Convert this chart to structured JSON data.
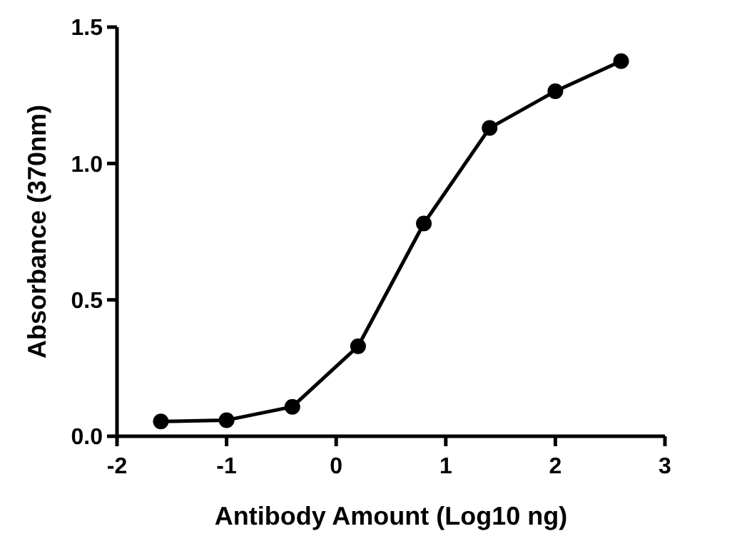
{
  "chart_data": {
    "type": "line",
    "xlabel": "Antibody Amount (Log10 ng)",
    "ylabel": "Absorbance (370nm)",
    "x": [
      -1.6,
      -1.0,
      -0.4,
      0.2,
      0.8,
      1.4,
      2.0,
      2.6
    ],
    "series": [
      {
        "color": "#000000",
        "values": [
          0.054,
          0.059,
          0.108,
          0.33,
          0.78,
          1.13,
          1.265,
          1.375
        ]
      }
    ],
    "xlim": [
      -2,
      3
    ],
    "xticks": [
      -2,
      -1,
      0,
      1,
      2,
      3
    ],
    "ylim": [
      0,
      1.5
    ],
    "yticks": [
      {
        "value": 0,
        "label": "0.0"
      },
      {
        "value": 0.5,
        "label": "0.5"
      },
      {
        "value": 1,
        "label": "1.0"
      },
      {
        "value": 1.5,
        "label": "1.5"
      }
    ],
    "marker": "circle",
    "line_style": "solid",
    "grid": false
  }
}
